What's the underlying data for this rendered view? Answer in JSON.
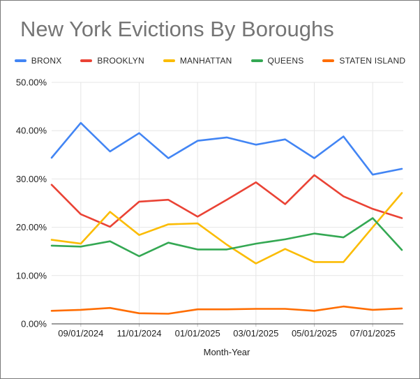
{
  "chart": {
    "title": "New York Evictions By Boroughs",
    "x_axis_title": "Month-Year"
  },
  "chart_data": {
    "type": "line",
    "title": "New York Evictions By Boroughs",
    "xlabel": "Month-Year",
    "ylabel": "",
    "units": "percent",
    "categories": [
      "08/01/2024",
      "09/01/2024",
      "10/01/2024",
      "11/01/2024",
      "12/01/2024",
      "01/01/2025",
      "02/01/2025",
      "03/01/2025",
      "04/01/2025",
      "05/01/2025",
      "06/01/2025",
      "07/01/2025",
      "08/01/2025"
    ],
    "series": [
      {
        "name": "BRONX",
        "color": "#4285F4",
        "values": [
          34.4,
          41.6,
          35.7,
          39.5,
          34.3,
          37.9,
          38.6,
          37.1,
          38.2,
          34.3,
          38.8,
          30.9,
          32.1
        ]
      },
      {
        "name": "BROOKLYN",
        "color": "#EA4335",
        "values": [
          28.8,
          22.7,
          20.1,
          25.3,
          25.7,
          22.2,
          25.7,
          29.3,
          24.8,
          30.8,
          26.4,
          23.8,
          21.9
        ]
      },
      {
        "name": "MANHATTAN",
        "color": "#FBBC04",
        "values": [
          17.4,
          16.6,
          23.2,
          18.4,
          20.6,
          20.8,
          16.4,
          12.5,
          15.5,
          12.8,
          12.8,
          20.0,
          27.1
        ]
      },
      {
        "name": "QUEENS",
        "color": "#34A853",
        "values": [
          16.2,
          16.0,
          17.1,
          14.0,
          16.8,
          15.4,
          15.4,
          16.6,
          17.5,
          18.7,
          17.9,
          21.9,
          15.3
        ]
      },
      {
        "name": "STATEN ISLAND",
        "color": "#FF6D01",
        "values": [
          2.7,
          2.9,
          3.3,
          2.2,
          2.1,
          3.0,
          3.0,
          3.1,
          3.1,
          2.7,
          3.6,
          2.9,
          3.2
        ]
      }
    ],
    "ylim": [
      0,
      50
    ],
    "y_ticks": {
      "values": [
        0,
        10,
        20,
        30,
        40,
        50
      ],
      "labels": [
        "0.00%",
        "10.00%",
        "20.00%",
        "30.00%",
        "40.00%",
        "50.00%"
      ]
    },
    "x_ticks": {
      "indices": [
        1,
        3,
        5,
        7,
        9,
        11
      ],
      "labels": [
        "09/01/2024",
        "11/01/2024",
        "01/01/2025",
        "03/01/2025",
        "05/01/2025",
        "07/01/2025"
      ]
    },
    "grid": true,
    "legend_position": "top",
    "colors": {
      "title_text": "#757575",
      "axis_label_text": "#222222",
      "gridline": "#e6e6e6",
      "axis_line": "#616161"
    }
  }
}
